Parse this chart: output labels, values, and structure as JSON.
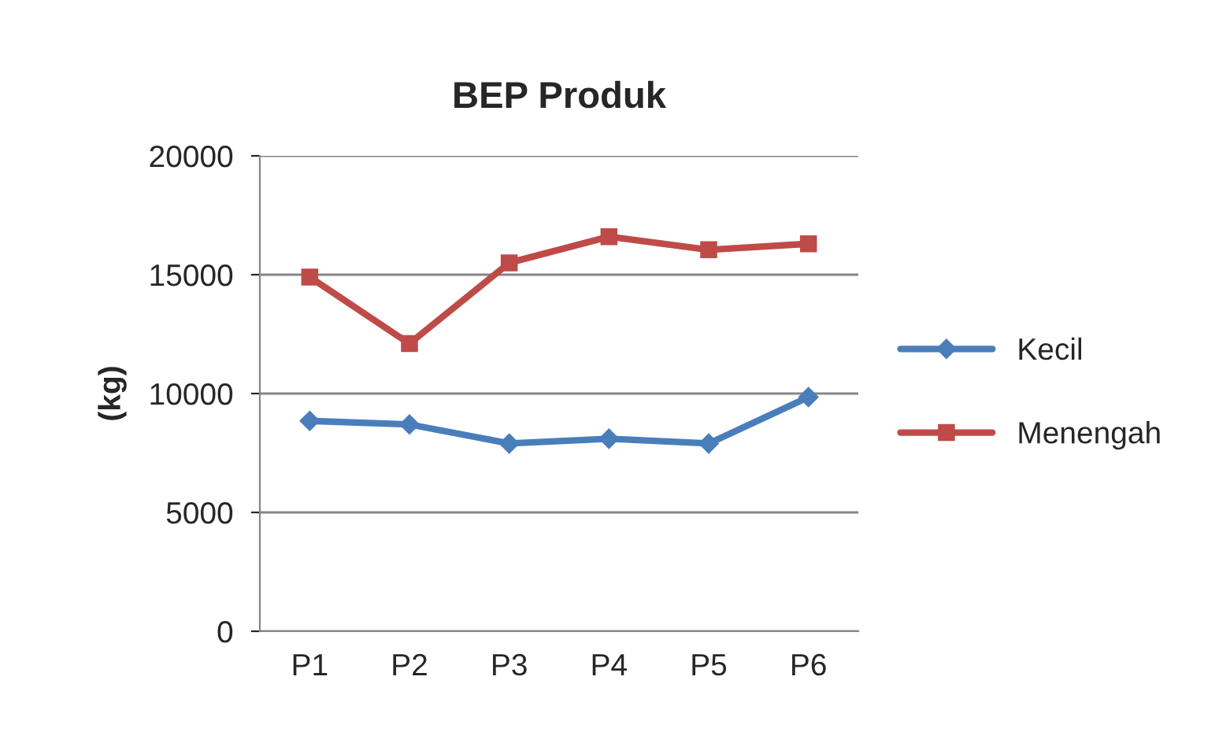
{
  "chart_data": {
    "type": "line",
    "title": "BEP Produk",
    "ylabel": "(kg)",
    "categories": [
      "P1",
      "P2",
      "P3",
      "P4",
      "P5",
      "P6"
    ],
    "series": [
      {
        "name": "Kecil",
        "color": "#4a7ebb",
        "marker": "diamond",
        "values": [
          8850,
          8700,
          7900,
          8100,
          7900,
          9850
        ]
      },
      {
        "name": "Menengah",
        "color": "#be4b48",
        "marker": "square",
        "values": [
          14900,
          12100,
          15500,
          16600,
          16050,
          16300
        ]
      }
    ],
    "ylim": [
      0,
      20000
    ],
    "yticks": [
      0,
      5000,
      10000,
      15000,
      20000
    ],
    "grid": "y",
    "legend": "right",
    "line_style": "solid"
  }
}
